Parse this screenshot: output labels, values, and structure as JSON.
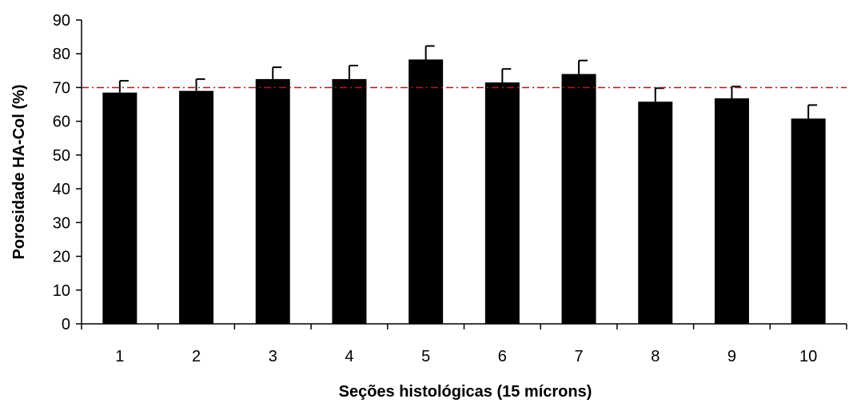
{
  "chart_data": {
    "type": "bar",
    "title": "",
    "xlabel": "Seções histológicas (15 mícrons)",
    "ylabel": "Porosidade HA-Col (%)",
    "categories": [
      "1",
      "2",
      "3",
      "4",
      "5",
      "6",
      "7",
      "8",
      "9",
      "10"
    ],
    "values": [
      68.5,
      69,
      72.5,
      72.5,
      78.3,
      71.5,
      74,
      65.8,
      66.8,
      60.8
    ],
    "error_bars": [
      3.5,
      3.5,
      3.5,
      4,
      4,
      4,
      4,
      4,
      3.5,
      4
    ],
    "ylim": [
      0,
      90
    ],
    "yticks": [
      0,
      10,
      20,
      30,
      40,
      50,
      60,
      70,
      80,
      90
    ],
    "reference_line": {
      "value": 70,
      "color": "#e8000b",
      "style": "dash-dot"
    },
    "bar_color": "#000000",
    "grid": false,
    "legend": "none"
  }
}
